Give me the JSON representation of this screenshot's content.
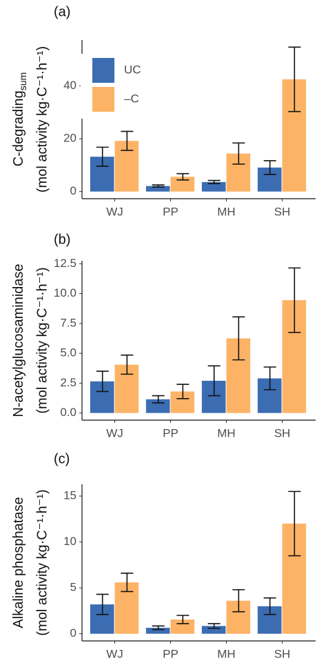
{
  "chart_data": [
    {
      "type": "bar",
      "panel_label": "(a)",
      "y_label": "C-degrading",
      "y_label_subscript": "sum",
      "y_unit": "(mol activity kg·C⁻¹·h⁻¹)",
      "categories": [
        "WJ",
        "PP",
        "MH",
        "SH"
      ],
      "series": [
        {
          "name": "UC",
          "color": "#3c6db3",
          "values": [
            13.2,
            2.1,
            3.6,
            9.1
          ],
          "errors": [
            3.6,
            0.4,
            0.6,
            2.6
          ]
        },
        {
          "name": "–C",
          "color": "#fdb366",
          "values": [
            19.2,
            5.6,
            14.4,
            42.5
          ],
          "errors": [
            3.6,
            1.2,
            4.0,
            12.2
          ]
        }
      ],
      "ylim": [
        -2.7,
        57.4
      ],
      "yticks": [
        0,
        20,
        40
      ],
      "legend": "top-left"
    },
    {
      "type": "bar",
      "panel_label": "(b)",
      "y_label": "N-acetylglucosaminidase",
      "y_unit": "(mol activity kg·C⁻¹·h⁻¹)",
      "categories": [
        "WJ",
        "PP",
        "MH",
        "SH"
      ],
      "series": [
        {
          "color": "#3c6db3",
          "values": [
            2.65,
            1.15,
            2.7,
            2.9
          ],
          "errors": [
            0.85,
            0.3,
            1.25,
            0.95
          ]
        },
        {
          "color": "#fdb366",
          "values": [
            4.05,
            1.8,
            6.25,
            9.45
          ],
          "errors": [
            0.8,
            0.6,
            1.8,
            2.7
          ]
        }
      ],
      "ylim": [
        -0.6,
        12.75
      ],
      "yticks": [
        {
          "value": 0,
          "label": "0.0"
        },
        2.5,
        {
          "value": 5,
          "label": "5.0"
        },
        7.5,
        {
          "value": 10,
          "label": "10.0"
        },
        12.5
      ]
    },
    {
      "type": "bar",
      "panel_label": "(c)",
      "y_label": "Alkaline phosphatase",
      "y_unit": "(mol activity kg·C⁻¹·h⁻¹)",
      "categories": [
        "WJ",
        "PP",
        "MH",
        "SH"
      ],
      "series": [
        {
          "color": "#3c6db3",
          "values": [
            3.2,
            0.65,
            0.85,
            3.0
          ],
          "errors": [
            1.1,
            0.2,
            0.25,
            0.9
          ]
        },
        {
          "color": "#fdb366",
          "values": [
            5.6,
            1.55,
            3.6,
            12.0
          ],
          "errors": [
            1.0,
            0.45,
            1.2,
            3.5
          ]
        }
      ],
      "ylim": [
        -0.78,
        16.28
      ],
      "yticks": [
        0,
        5,
        10,
        15
      ]
    }
  ]
}
